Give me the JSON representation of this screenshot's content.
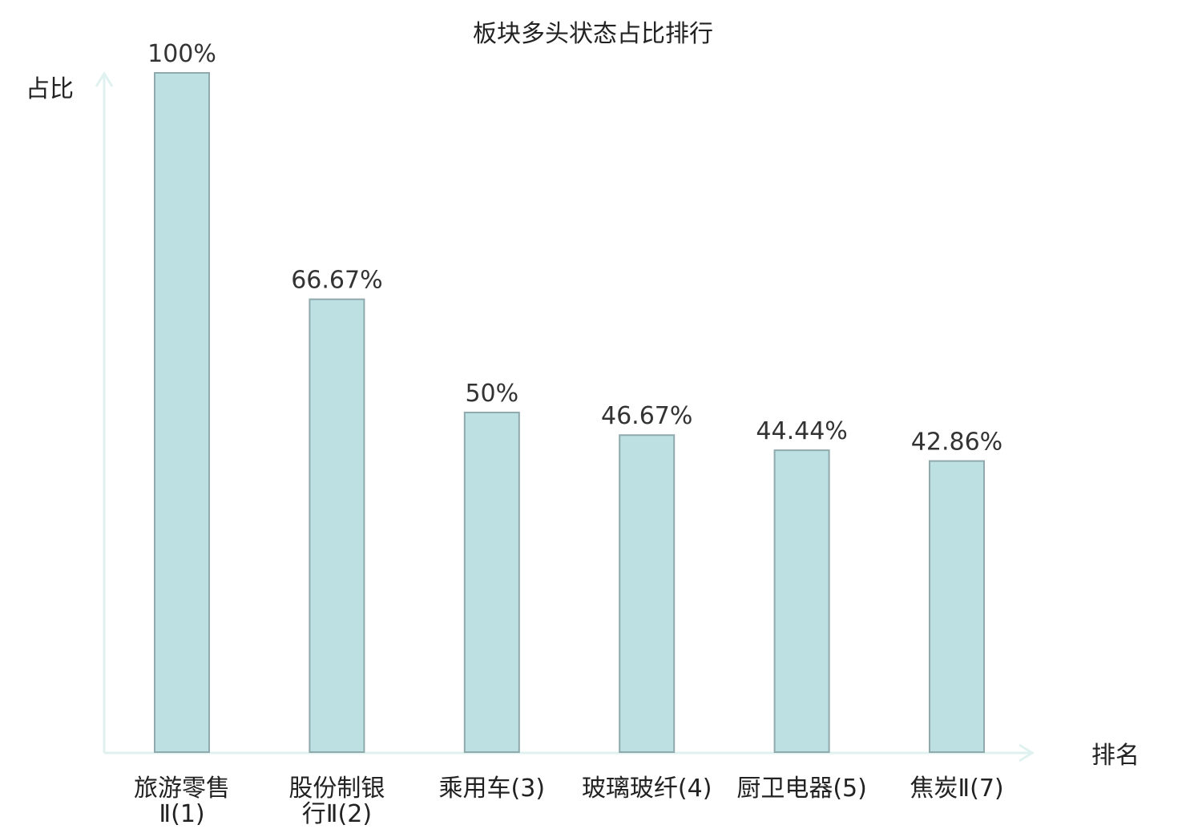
{
  "chart_data": {
    "type": "bar",
    "title": "板块多头状态占比排行",
    "ylabel": "占比",
    "xlabel": "排名",
    "ylim": [
      0,
      100
    ],
    "grid": false,
    "colors": {
      "bar_fill": "#bde0e3",
      "bar_stroke": "#8fa9ad",
      "axis": "#dff2ef",
      "highlight_label": "#e0171b"
    },
    "categories": [
      {
        "name": "旅游零售",
        "rank": "Ⅱ(1)",
        "lines": [
          "旅游零售",
          "Ⅱ(1)"
        ],
        "highlight": false
      },
      {
        "name": "股份制银行",
        "rank": "Ⅱ(2)",
        "lines": [
          "股份制银",
          "行Ⅱ(2)"
        ],
        "highlight": false
      },
      {
        "name": "乘用车",
        "rank": "(3)",
        "lines": [
          "乘用车(3)"
        ],
        "highlight": false
      },
      {
        "name": "玻璃玻纤",
        "rank": "(4)",
        "lines": [
          "玻璃玻纤(4)"
        ],
        "highlight": false
      },
      {
        "name": "厨卫电器",
        "rank": "(5)",
        "lines": [
          "厨卫电器(5)"
        ],
        "highlight": false
      },
      {
        "name": "焦炭",
        "rank": "Ⅱ(7)",
        "lines": [
          "焦炭Ⅱ(7)"
        ],
        "highlight": true
      }
    ],
    "values": [
      100,
      66.67,
      50,
      46.67,
      44.44,
      42.86
    ],
    "value_labels": [
      "100%",
      "66.67%",
      "50%",
      "46.67%",
      "44.44%",
      "42.86%"
    ]
  }
}
